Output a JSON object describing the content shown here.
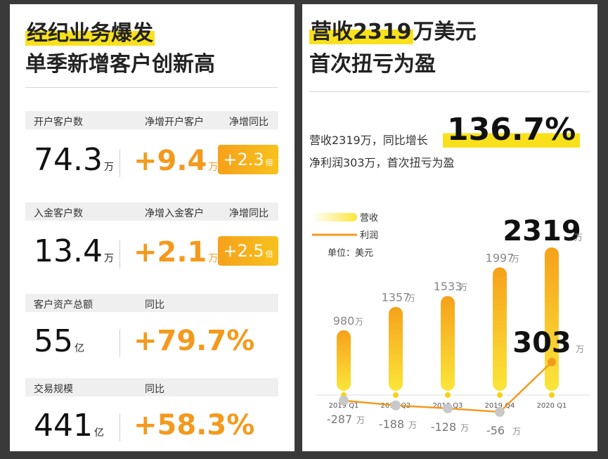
{
  "left": {
    "title1": "经纪业务爆发",
    "title2": "单季新增客户创新高",
    "sections": [
      {
        "h1": "开户客户数",
        "h2": "净增开户客户",
        "h3": "净增同比",
        "value": "74.3",
        "unit": "万",
        "delta": "+9.4",
        "delta_unit": "万",
        "badge": "+2.3",
        "badge_unit": "倍"
      },
      {
        "h1": "入金客户数",
        "h2": "净增入金客户",
        "h3": "净增同比",
        "value": "13.4",
        "unit": "万",
        "delta": "+2.1",
        "delta_unit": "万",
        "badge": "+2.5",
        "badge_unit": "倍"
      },
      {
        "h1": "客户资产总额",
        "h2": "同比",
        "value": "55",
        "unit": "亿",
        "delta": "+79.7%"
      },
      {
        "h1": "交易规模",
        "h2": "同比",
        "value": "441",
        "unit": "亿",
        "delta": "+58.3%"
      }
    ]
  },
  "right": {
    "title1_hl": "营收",
    "title1_num": "2319",
    "title1_rest": "万美元",
    "title2": "首次扭亏为盈",
    "line1": "营收2319万，同比增长",
    "growth": "136.7%",
    "line2": "净利润303万，首次扭亏为盈"
  },
  "chart_data": {
    "type": "bar",
    "categories": [
      "2019 Q1",
      "2019 Q2",
      "2019 Q3",
      "2019 Q4",
      "2020 Q1"
    ],
    "series": [
      {
        "name": "营收",
        "type": "bar",
        "values": [
          980,
          1357,
          1533,
          1997,
          2319
        ],
        "labels": [
          "980",
          "1357",
          "1533",
          "1997",
          "2319"
        ],
        "color": "#f7c21d"
      },
      {
        "name": "利润",
        "type": "line",
        "values": [
          -287,
          -188,
          -128,
          -56,
          303
        ],
        "labels": [
          "-287",
          "-188",
          "-128",
          "-56",
          "303"
        ],
        "color": "#f39a1e"
      }
    ],
    "label_unit": "万",
    "unit_note": "单位：美元"
  }
}
